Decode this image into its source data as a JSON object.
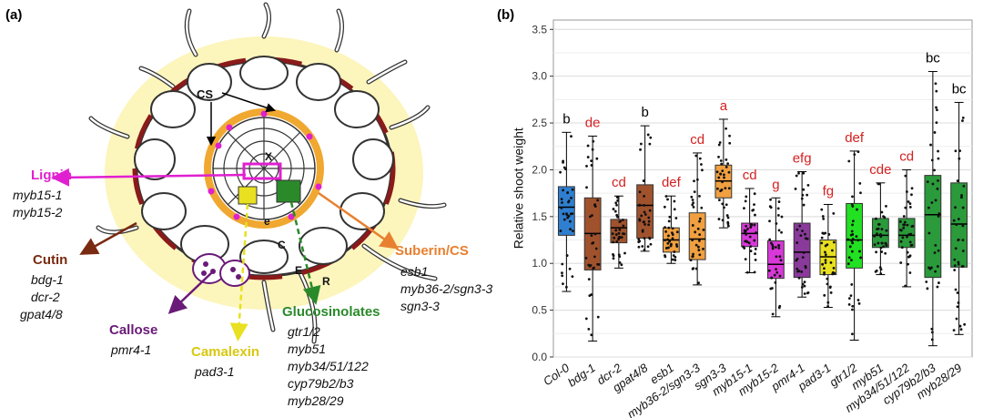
{
  "panel_a": {
    "tag": "(a)",
    "labels": {
      "cs": "CS",
      "x": "X",
      "e": "e",
      "c": "C",
      "E": "E",
      "r": "R"
    },
    "lignin": {
      "title": "Lignin",
      "genes": [
        "myb15-1",
        "myb15-2"
      ],
      "color": "#e020d0"
    },
    "cutin": {
      "title": "Cutin",
      "genes": [
        "bdg-1",
        "dcr-2",
        "gpat4/8"
      ],
      "color": "#7a2a10"
    },
    "callose": {
      "title": "Callose",
      "genes": [
        "pmr4-1"
      ],
      "color": "#6a1a78"
    },
    "camalexin": {
      "title": "Camalexin",
      "genes": [
        "pad3-1"
      ],
      "color": "#e8e020"
    },
    "glucosinolates": {
      "title": "Glucosinolates",
      "genes": [
        "gtr1/2",
        "myb51",
        "myb34/51/122",
        "cyp79b2/b3",
        "myb28/29"
      ],
      "color": "#2a8a2a"
    },
    "suberin": {
      "title": "Suberin/CS",
      "genes": [
        "esb1",
        "myb36-2/sgn3-3",
        "sgn3-3"
      ],
      "color": "#e88030"
    }
  },
  "panel_b": {
    "tag": "(b)"
  },
  "chart_data": {
    "type": "box",
    "ylabel": "Relative shoot weight",
    "ylim": [
      0,
      3.6
    ],
    "yticks": [
      0.0,
      0.5,
      1.0,
      1.5,
      2.0,
      2.5,
      3.0,
      3.5
    ],
    "ytick_labels": [
      "0.0",
      "0.5",
      "1.0",
      "1.5",
      "2.0",
      "2.5",
      "3.0",
      "3.5"
    ],
    "grid": true,
    "groups": [
      {
        "name": "Col-0",
        "min": 0.7,
        "q1": 1.3,
        "median": 1.6,
        "q3": 1.82,
        "max": 2.4,
        "letter": "b",
        "letter_color": "#000000",
        "fill": "#2f7fd0"
      },
      {
        "name": "bdg-1",
        "min": 0.17,
        "q1": 0.93,
        "median": 1.32,
        "q3": 1.7,
        "max": 2.36,
        "letter": "de",
        "letter_color": "#d42020",
        "fill": "#a0522d"
      },
      {
        "name": "dcr-2",
        "min": 0.95,
        "q1": 1.22,
        "median": 1.38,
        "q3": 1.47,
        "max": 1.72,
        "letter": "cd",
        "letter_color": "#d42020",
        "fill": "#a0522d"
      },
      {
        "name": "gpat4/8",
        "min": 1.13,
        "q1": 1.27,
        "median": 1.62,
        "q3": 1.84,
        "max": 2.47,
        "letter": "b",
        "letter_color": "#000000",
        "fill": "#a0522d"
      },
      {
        "name": "esb1",
        "min": 1.0,
        "q1": 1.12,
        "median": 1.25,
        "q3": 1.38,
        "max": 1.72,
        "letter": "def",
        "letter_color": "#d42020",
        "fill": "#f0a040"
      },
      {
        "name": "myb36-2/sgn3-3",
        "min": 0.77,
        "q1": 1.04,
        "median": 1.26,
        "q3": 1.54,
        "max": 2.18,
        "letter": "cd",
        "letter_color": "#d42020",
        "fill": "#f0a040"
      },
      {
        "name": "sgn3-3",
        "min": 1.38,
        "q1": 1.7,
        "median": 1.88,
        "q3": 2.05,
        "max": 2.54,
        "letter": "a",
        "letter_color": "#d42020",
        "fill": "#f0a040"
      },
      {
        "name": "myb15-1",
        "min": 0.9,
        "q1": 1.18,
        "median": 1.32,
        "q3": 1.43,
        "max": 1.8,
        "letter": "cd",
        "letter_color": "#d42020",
        "fill": "#d838d8"
      },
      {
        "name": "myb15-2",
        "min": 0.43,
        "q1": 0.84,
        "median": 0.99,
        "q3": 1.24,
        "max": 1.7,
        "letter": "g",
        "letter_color": "#d42020",
        "fill": "#d838d8"
      },
      {
        "name": "pmr4-1",
        "min": 0.64,
        "q1": 0.85,
        "median": 1.12,
        "q3": 1.43,
        "max": 1.98,
        "letter": "efg",
        "letter_color": "#d42020",
        "fill": "#8a3a9a"
      },
      {
        "name": "pad3-1",
        "min": 0.53,
        "q1": 0.88,
        "median": 1.07,
        "q3": 1.25,
        "max": 1.63,
        "letter": "fg",
        "letter_color": "#d42020",
        "fill": "#e8e020"
      },
      {
        "name": "gtr1/2",
        "min": 0.18,
        "q1": 0.95,
        "median": 1.25,
        "q3": 1.64,
        "max": 2.2,
        "letter": "def",
        "letter_color": "#d42020",
        "fill": "#22e022"
      },
      {
        "name": "myb51",
        "min": 0.88,
        "q1": 1.17,
        "median": 1.3,
        "q3": 1.48,
        "max": 1.86,
        "letter": "cde",
        "letter_color": "#d42020",
        "fill": "#2a9a3a"
      },
      {
        "name": "myb34/51/122",
        "min": 0.75,
        "q1": 1.17,
        "median": 1.3,
        "q3": 1.48,
        "max": 2.0,
        "letter": "cd",
        "letter_color": "#d42020",
        "fill": "#2a9a3a"
      },
      {
        "name": "cyp79b2/b3",
        "min": 0.12,
        "q1": 0.85,
        "median": 1.52,
        "q3": 1.94,
        "max": 3.05,
        "letter": "bc",
        "letter_color": "#000000",
        "fill": "#2a9a3a"
      },
      {
        "name": "myb28/29",
        "min": 0.24,
        "q1": 0.96,
        "median": 1.42,
        "q3": 1.86,
        "max": 2.72,
        "letter": "bc",
        "letter_color": "#000000",
        "fill": "#2a9a3a"
      }
    ]
  }
}
